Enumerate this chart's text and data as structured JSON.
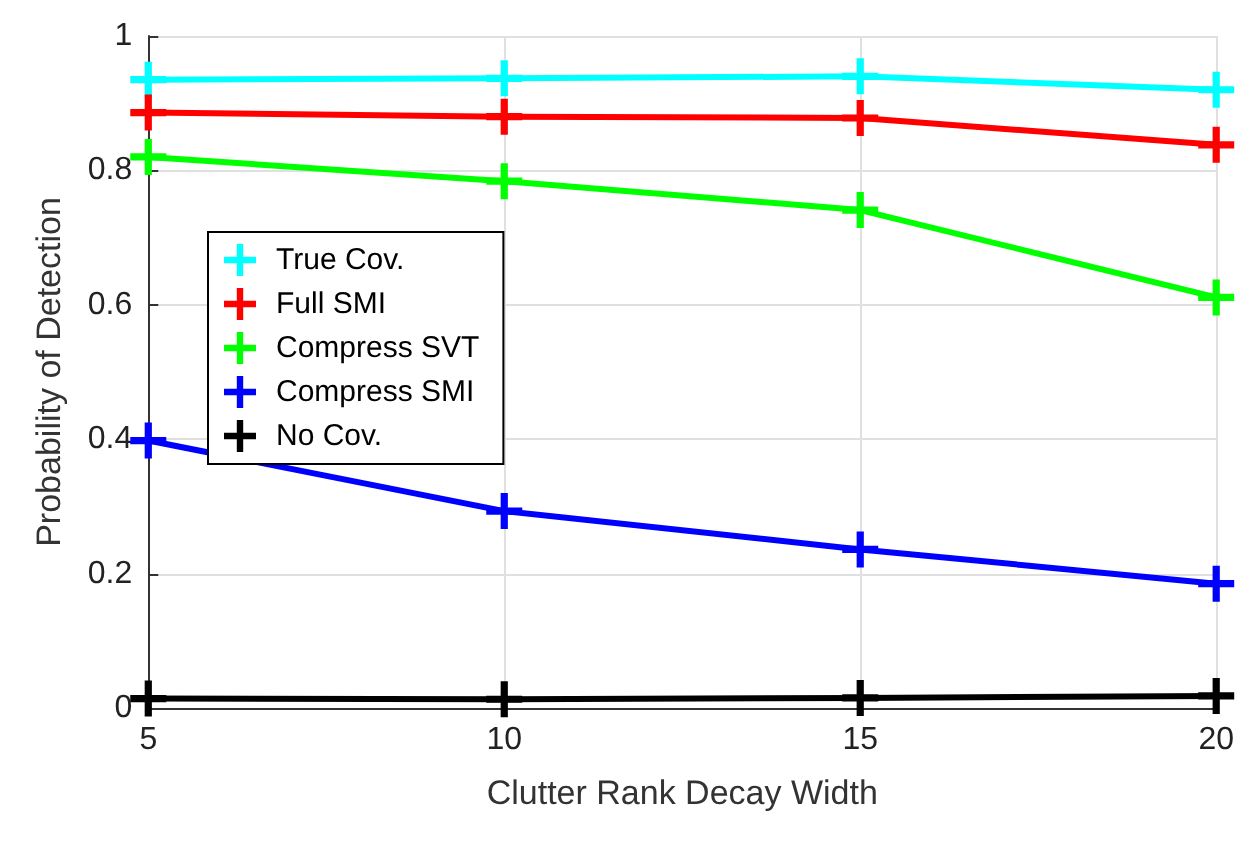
{
  "chart_data": {
    "type": "line",
    "xlabel": "Clutter Rank Decay Width",
    "ylabel": "Probability of Detection",
    "x": [
      5,
      10,
      15,
      20
    ],
    "xlim": [
      5,
      20
    ],
    "xticks": [
      5,
      10,
      15,
      20
    ],
    "ylim": [
      0,
      1
    ],
    "yticks": [
      0,
      0.2,
      0.4,
      0.6,
      0.8,
      1
    ],
    "grid": true,
    "legend": "left",
    "marker": "cross",
    "line_style": "solid",
    "series": [
      {
        "name": "True Cov.",
        "color": "#00ffff",
        "values": [
          0.935,
          0.937,
          0.94,
          0.92
        ]
      },
      {
        "name": "Full SMI",
        "color": "#ff0000",
        "values": [
          0.886,
          0.88,
          0.878,
          0.838
        ]
      },
      {
        "name": "Compress SVT",
        "color": "#00ff00",
        "values": [
          0.82,
          0.784,
          0.741,
          0.611
        ]
      },
      {
        "name": "Compress SMI",
        "color": "#0000ff",
        "values": [
          0.398,
          0.293,
          0.236,
          0.185
        ]
      },
      {
        "name": "No Cov.",
        "color": "#000000",
        "values": [
          0.014,
          0.013,
          0.015,
          0.018
        ]
      }
    ]
  }
}
